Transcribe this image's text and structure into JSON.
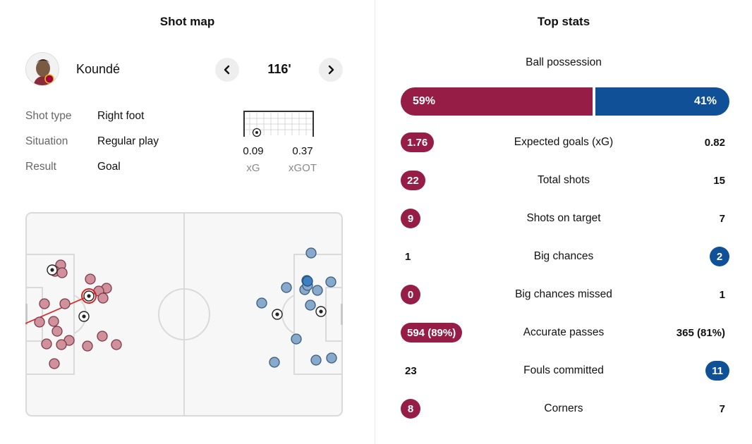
{
  "shot_map": {
    "title": "Shot map",
    "player_name": "Koundé",
    "minute": "116'",
    "details": [
      {
        "label": "Shot type",
        "value": "Right foot"
      },
      {
        "label": "Situation",
        "value": "Regular play"
      },
      {
        "label": "Result",
        "value": "Goal"
      }
    ],
    "xg": {
      "value": "0.09",
      "label": "xG"
    },
    "xgot": {
      "value": "0.37",
      "label": "xGOT"
    }
  },
  "top_stats": {
    "title": "Top stats",
    "possession": {
      "label": "Ball possession",
      "home": "59%",
      "away": "41%",
      "home_share": 0.59
    },
    "rows": [
      {
        "name": "Expected goals (xG)",
        "home": "1.76",
        "away": "0.82",
        "highlight": "home"
      },
      {
        "name": "Total shots",
        "home": "22",
        "away": "15",
        "highlight": "home"
      },
      {
        "name": "Shots on target",
        "home": "9",
        "away": "7",
        "highlight": "home"
      },
      {
        "name": "Big chances",
        "home": "1",
        "away": "2",
        "highlight": "away"
      },
      {
        "name": "Big chances missed",
        "home": "0",
        "away": "1",
        "highlight": "home"
      },
      {
        "name": "Accurate passes",
        "home": "594 (89%)",
        "away": "365 (81%)",
        "highlight": "home"
      },
      {
        "name": "Fouls committed",
        "home": "23",
        "away": "11",
        "highlight": "away"
      },
      {
        "name": "Corners",
        "home": "8",
        "away": "7",
        "highlight": "home"
      }
    ]
  },
  "colors": {
    "home": "#961e46",
    "away": "#0f5096",
    "home_dot": "#d0909c",
    "away_dot": "#87a9cc"
  }
}
